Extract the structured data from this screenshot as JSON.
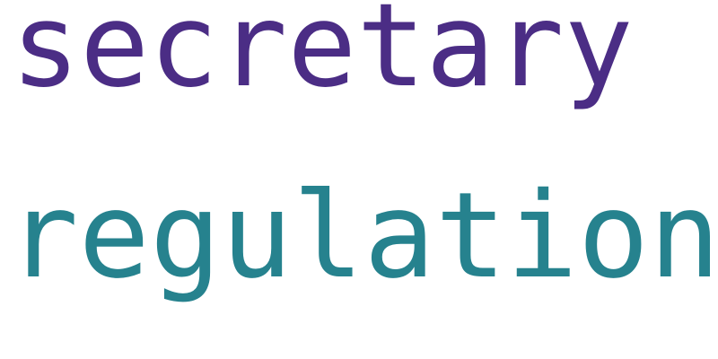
{
  "words": [
    {
      "text": "secretary",
      "color": "#4b2d85"
    },
    {
      "text": "regulations",
      "color": "#26828e"
    }
  ]
}
